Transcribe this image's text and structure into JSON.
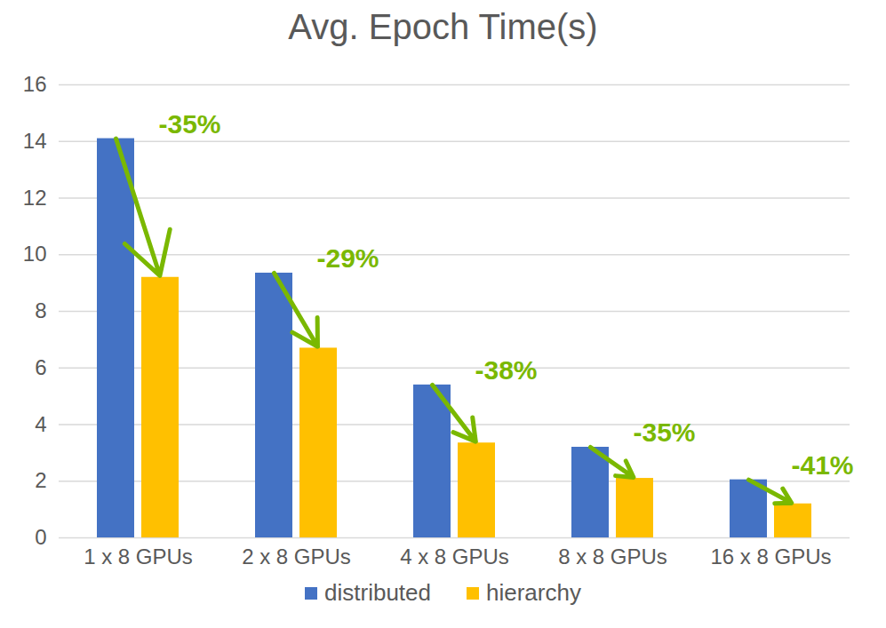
{
  "chart_data": {
    "type": "bar",
    "title": "Avg. Epoch Time(s)",
    "categories": [
      "1 x 8 GPUs",
      "2 x 8 GPUs",
      "4 x 8 GPUs",
      "8 x 8 GPUs",
      "16 x 8 GPUs"
    ],
    "series": [
      {
        "name": "distributed",
        "color": "#4472c4",
        "values": [
          14.1,
          9.35,
          5.4,
          3.2,
          2.05
        ]
      },
      {
        "name": "hierarchy",
        "color": "#ffc000",
        "values": [
          9.2,
          6.7,
          3.35,
          2.1,
          1.2
        ]
      }
    ],
    "annotations": [
      "-35%",
      "-29%",
      "-38%",
      "-35%",
      "-41%"
    ],
    "ylim": [
      0,
      16
    ],
    "yticks": [
      0,
      2,
      4,
      6,
      8,
      10,
      12,
      14,
      16
    ],
    "grid": true,
    "legend": "bottom"
  }
}
